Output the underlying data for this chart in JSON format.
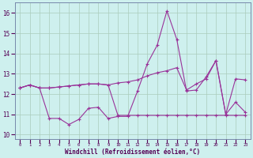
{
  "title": "",
  "xlabel": "Windchill (Refroidissement éolien,°C)",
  "background_color": "#cef0ee",
  "grid_color": "#aaccbb",
  "line_color": "#993399",
  "x_values": [
    0,
    1,
    2,
    3,
    4,
    5,
    6,
    7,
    8,
    9,
    10,
    11,
    12,
    13,
    14,
    15,
    16,
    17,
    18,
    19,
    20,
    21,
    22,
    23
  ],
  "series1": [
    12.3,
    12.45,
    12.3,
    10.8,
    10.8,
    10.5,
    10.75,
    11.3,
    11.35,
    10.8,
    10.9,
    10.9,
    12.15,
    13.5,
    14.4,
    16.1,
    14.7,
    12.15,
    12.2,
    12.85,
    13.65,
    11.0,
    11.6,
    11.1
  ],
  "series2": [
    12.3,
    12.45,
    12.3,
    12.3,
    12.35,
    12.4,
    12.45,
    12.5,
    12.5,
    12.45,
    12.55,
    12.6,
    12.7,
    12.9,
    13.05,
    13.15,
    13.3,
    12.2,
    12.5,
    12.75,
    13.65,
    11.0,
    12.75,
    12.7
  ],
  "series3": [
    12.3,
    12.45,
    12.3,
    12.3,
    12.35,
    12.4,
    12.45,
    12.5,
    12.5,
    12.45,
    10.95,
    10.95,
    10.95,
    10.95,
    10.95,
    10.95,
    10.95,
    10.95,
    10.95,
    10.95,
    10.95,
    10.95,
    10.95,
    10.95
  ],
  "ylim": [
    9.8,
    16.5
  ],
  "yticks": [
    10,
    11,
    12,
    13,
    14,
    15,
    16
  ],
  "xtick_labels": [
    "0",
    "1",
    "2",
    "3",
    "4",
    "5",
    "6",
    "7",
    "8",
    "9",
    "10",
    "11",
    "12",
    "13",
    "14",
    "15",
    "16",
    "17",
    "18",
    "19",
    "20",
    "21",
    "22",
    "23"
  ]
}
